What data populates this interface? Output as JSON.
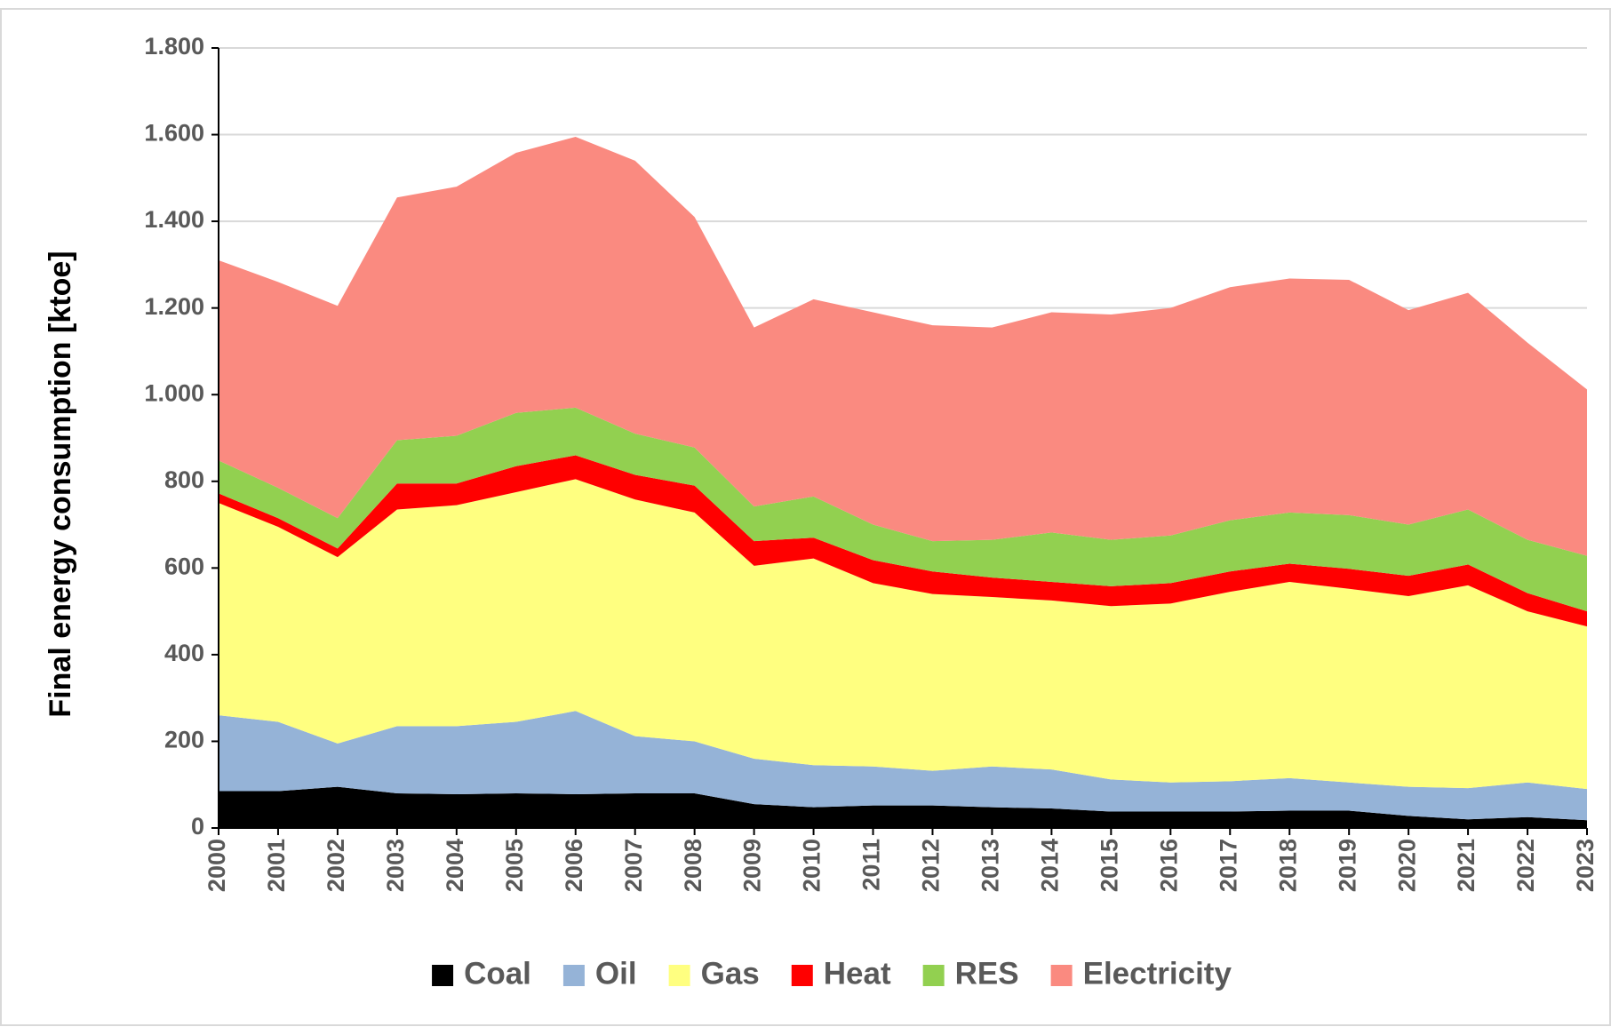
{
  "chart_data": {
    "type": "stacked_area",
    "y_label": "Final energy consumption  [ktoe]",
    "categories": [
      "2000",
      "2001",
      "2002",
      "2003",
      "2004",
      "2005",
      "2006",
      "2007",
      "2008",
      "2009",
      "2010",
      "2011",
      "2012",
      "2013",
      "2014",
      "2015",
      "2016",
      "2017",
      "2018",
      "2019",
      "2020",
      "2021",
      "2022",
      "2023"
    ],
    "series": [
      {
        "name": "Coal",
        "color": "#000000",
        "values": [
          85,
          85,
          95,
          80,
          78,
          80,
          78,
          80,
          80,
          55,
          48,
          52,
          52,
          48,
          45,
          38,
          38,
          38,
          40,
          40,
          28,
          20,
          25,
          18
        ]
      },
      {
        "name": "Oil",
        "color": "#95b3d7",
        "values": [
          175,
          160,
          100,
          155,
          157,
          165,
          192,
          132,
          120,
          105,
          97,
          90,
          80,
          94,
          90,
          74,
          67,
          70,
          75,
          65,
          67,
          72,
          80,
          72
        ]
      },
      {
        "name": "Gas",
        "color": "#ffff80",
        "values": [
          490,
          450,
          430,
          500,
          510,
          530,
          535,
          546,
          528,
          445,
          477,
          423,
          408,
          391,
          390,
          400,
          413,
          437,
          453,
          447,
          440,
          468,
          395,
          375
        ]
      },
      {
        "name": "Heat",
        "color": "#ff0000",
        "values": [
          22,
          20,
          20,
          60,
          50,
          60,
          55,
          57,
          62,
          57,
          48,
          53,
          52,
          45,
          43,
          46,
          47,
          47,
          42,
          46,
          47,
          48,
          42,
          35
        ]
      },
      {
        "name": "RES",
        "color": "#92d050",
        "values": [
          76,
          70,
          70,
          100,
          110,
          123,
          110,
          95,
          88,
          80,
          95,
          82,
          70,
          87,
          114,
          107,
          110,
          118,
          118,
          124,
          118,
          127,
          123,
          128
        ]
      },
      {
        "name": "Electricity",
        "color": "#fa8a80",
        "values": [
          462,
          475,
          490,
          560,
          575,
          600,
          625,
          630,
          532,
          413,
          455,
          490,
          498,
          490,
          508,
          520,
          525,
          538,
          540,
          543,
          495,
          500,
          455,
          384
        ]
      }
    ],
    "ylim": [
      0,
      1800
    ],
    "yticks": [
      0,
      200,
      400,
      600,
      800,
      {
        "value": 1000,
        "label": "1.000"
      },
      {
        "value": 1200,
        "label": "1.200"
      },
      {
        "value": 1400,
        "label": "1.400"
      },
      {
        "value": 1600,
        "label": "1.600"
      },
      {
        "value": 1800,
        "label": "1.800"
      }
    ],
    "grid": true,
    "legend": "bottom"
  }
}
